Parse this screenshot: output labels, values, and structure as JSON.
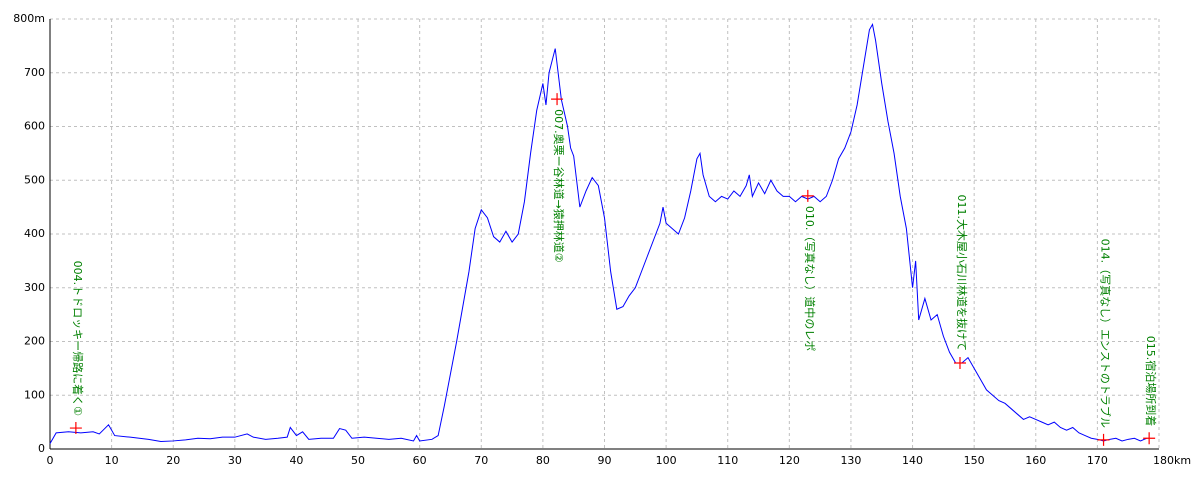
{
  "chart_data": {
    "type": "line",
    "x": [
      0,
      1,
      3,
      5,
      7,
      8,
      9.5,
      10.5,
      13,
      16,
      18,
      20,
      22,
      24,
      26,
      28,
      30,
      32,
      33,
      35,
      37,
      38.5,
      39,
      40,
      41,
      42,
      44,
      46,
      47,
      48,
      49,
      51,
      53,
      55,
      57,
      59,
      59.5,
      60,
      62,
      63,
      64,
      66,
      68,
      69,
      70,
      71,
      72,
      73,
      74,
      75,
      76,
      77,
      78,
      79,
      80,
      80.5,
      81,
      82,
      83,
      84,
      84.5,
      85,
      86,
      87,
      88,
      89,
      90,
      91,
      92,
      93,
      94,
      95,
      96,
      97,
      98,
      99,
      99.5,
      100,
      101,
      102,
      103,
      104,
      105,
      105.5,
      106,
      107,
      108,
      109,
      110,
      111,
      112,
      113,
      113.5,
      114,
      115,
      116,
      117,
      118,
      119,
      120,
      121,
      122,
      123,
      124,
      125,
      126,
      127,
      128,
      129,
      130,
      131,
      132,
      133,
      133.5,
      134,
      135,
      136,
      137,
      138,
      139,
      140,
      140.5,
      141,
      142,
      143,
      144,
      145,
      146,
      147,
      148,
      149,
      150,
      151,
      152,
      153,
      154,
      155,
      156,
      157,
      158,
      159,
      160,
      161,
      162,
      163,
      164,
      165,
      166,
      167,
      168,
      169,
      170,
      171,
      172,
      173,
      174,
      175,
      176,
      177,
      178
    ],
    "series": [
      {
        "color": "#0000ff",
        "values": [
          10,
          30,
          32,
          30,
          32,
          28,
          45,
          25,
          22,
          18,
          14,
          15,
          17,
          20,
          19,
          22,
          22,
          28,
          22,
          18,
          20,
          22,
          40,
          25,
          32,
          18,
          20,
          20,
          38,
          35,
          20,
          22,
          20,
          18,
          20,
          15,
          25,
          15,
          18,
          25,
          80,
          200,
          330,
          410,
          445,
          430,
          395,
          385,
          405,
          385,
          400,
          460,
          550,
          630,
          680,
          640,
          700,
          745,
          650,
          600,
          560,
          545,
          450,
          480,
          505,
          490,
          430,
          330,
          260,
          265,
          285,
          300,
          330,
          360,
          390,
          420,
          450,
          420,
          410,
          400,
          430,
          480,
          540,
          550,
          510,
          470,
          460,
          470,
          465,
          480,
          470,
          490,
          510,
          470,
          495,
          475,
          500,
          480,
          470,
          470,
          460,
          470,
          465,
          470,
          460,
          470,
          500,
          540,
          560,
          590,
          640,
          710,
          780,
          790,
          760,
          680,
          610,
          550,
          470,
          410,
          300,
          350,
          240,
          280,
          240,
          250,
          210,
          180,
          160,
          160,
          170,
          150,
          130,
          110,
          100,
          90,
          85,
          75,
          65,
          55,
          60,
          55,
          50,
          45,
          50,
          40,
          35,
          40,
          30,
          25,
          20,
          18,
          15,
          18,
          20,
          15,
          18,
          20,
          15,
          20
        ]
      }
    ],
    "markers": {
      "color": "#ff0000",
      "label_color": "#008000",
      "x": [
        4.2,
        82.3,
        123,
        147.7,
        171,
        178.4
      ],
      "y": [
        39,
        651,
        471,
        160,
        17,
        20
      ],
      "labels": [
        "004.トドロッキー帰路に着く①",
        "007.奥栗ー谷林道→猿押林道②",
        "010.（写真なし）道中のレポ",
        "011.大木屋小石川林道を抜けて",
        "014.（写真なし）エンストのトラブル",
        "015.宿泊場所到着"
      ]
    },
    "xlim": [
      0,
      180
    ],
    "ylim": [
      0,
      800
    ],
    "xticks": [
      0,
      10,
      20,
      30,
      40,
      50,
      60,
      70,
      80,
      90,
      100,
      110,
      120,
      130,
      140,
      150,
      160,
      170,
      {
        "value": 180,
        "label": "180km"
      }
    ],
    "yticks": [
      0,
      100,
      200,
      300,
      400,
      500,
      600,
      700,
      {
        "value": 800,
        "label": "800m"
      }
    ],
    "grid": true
  }
}
